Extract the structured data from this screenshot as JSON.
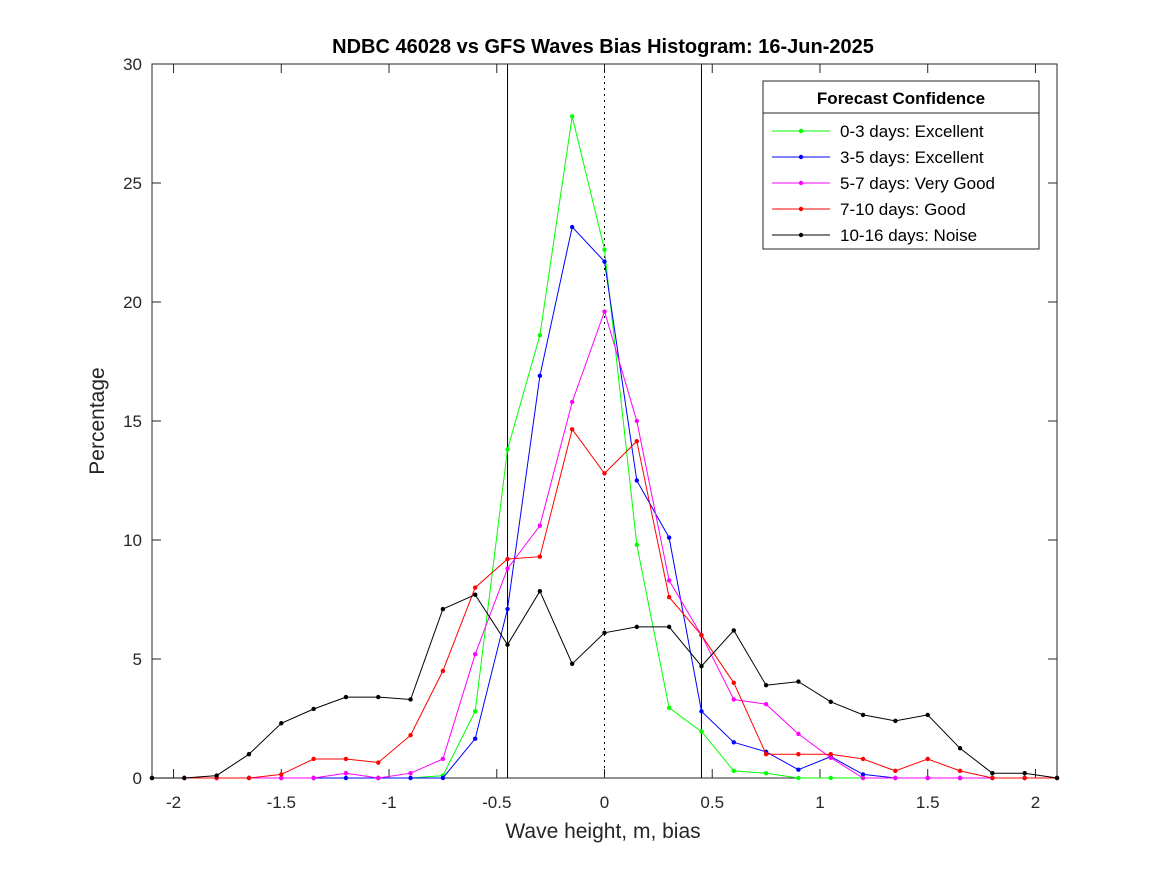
{
  "chart_data": {
    "type": "line",
    "title": "NDBC 46028 vs GFS Waves Bias Histogram: 16-Jun-2025",
    "xlabel": "Wave height, m, bias",
    "ylabel": "Percentage",
    "xlim": [
      -2.1,
      2.1
    ],
    "ylim": [
      0,
      30
    ],
    "xticks": [
      -2,
      -1.5,
      -1,
      -0.5,
      0,
      0.5,
      1,
      1.5,
      2
    ],
    "xtick_labels": [
      "-2",
      "-1.5",
      "-1",
      "-0.5",
      "0",
      "0.5",
      "1",
      "1.5",
      "2"
    ],
    "yticks": [
      0,
      5,
      10,
      15,
      20,
      25,
      30
    ],
    "ytick_labels": [
      "0",
      "5",
      "10",
      "15",
      "20",
      "25",
      "30"
    ],
    "grid": false,
    "vertical_lines": [
      {
        "x": -0.45,
        "style": "solid",
        "color": "#000000"
      },
      {
        "x": 0,
        "style": "dotted",
        "color": "#000000"
      },
      {
        "x": 0.45,
        "style": "solid",
        "color": "#000000"
      }
    ],
    "legend": {
      "title": "Forecast Confidence",
      "placement": "top-right"
    },
    "x": [
      -2.1,
      -1.95,
      -1.8,
      -1.65,
      -1.5,
      -1.35,
      -1.2,
      -1.05,
      -0.9,
      -0.75,
      -0.6,
      -0.45,
      -0.3,
      -0.15,
      0,
      0.15,
      0.3,
      0.45,
      0.6,
      0.75,
      0.9,
      1.05,
      1.2,
      1.35,
      1.5,
      1.65,
      1.8,
      1.95,
      2.1
    ],
    "series": [
      {
        "name": "0-3 days: Excellent",
        "color": "#00ff00",
        "values": [
          0,
          0,
          0,
          0,
          0,
          0,
          0,
          0,
          0,
          0.1,
          2.8,
          13.8,
          18.6,
          27.8,
          22.2,
          9.8,
          2.95,
          1.95,
          0.3,
          0.2,
          0,
          0,
          0,
          0,
          0,
          0,
          0,
          0,
          0
        ]
      },
      {
        "name": "3-5 days: Excellent",
        "color": "#0000ff",
        "values": [
          0,
          0,
          0,
          0,
          0,
          0,
          0,
          0,
          0,
          0,
          1.65,
          7.1,
          16.9,
          23.15,
          21.7,
          12.5,
          10.1,
          2.8,
          1.5,
          1.1,
          0.35,
          0.9,
          0.15,
          0,
          0,
          0,
          0,
          0,
          0
        ]
      },
      {
        "name": "5-7 days: Very Good",
        "color": "#ff00ff",
        "values": [
          0,
          0,
          0,
          0,
          0,
          0,
          0.2,
          0,
          0.2,
          0.8,
          5.2,
          8.8,
          10.6,
          15.8,
          19.6,
          15.0,
          8.3,
          6.0,
          3.3,
          3.1,
          1.85,
          0.85,
          0,
          0,
          0,
          0,
          0,
          0,
          0
        ]
      },
      {
        "name": "7-10 days: Good",
        "color": "#ff0000",
        "values": [
          0,
          0,
          0,
          0,
          0.15,
          0.8,
          0.8,
          0.65,
          1.8,
          4.5,
          8.0,
          9.2,
          9.3,
          14.65,
          12.8,
          14.15,
          7.6,
          6.0,
          4.0,
          1.0,
          1.0,
          1.0,
          0.8,
          0.3,
          0.8,
          0.3,
          0,
          0,
          0
        ]
      },
      {
        "name": "10-16 days: Noise",
        "color": "#000000",
        "values": [
          0,
          0,
          0.1,
          1.0,
          2.3,
          2.9,
          3.4,
          3.4,
          3.3,
          7.1,
          7.7,
          5.6,
          7.85,
          4.8,
          6.1,
          6.35,
          6.35,
          4.7,
          6.2,
          3.9,
          4.05,
          3.2,
          2.65,
          2.4,
          2.65,
          1.25,
          0.2,
          0.2,
          0
        ]
      }
    ]
  }
}
